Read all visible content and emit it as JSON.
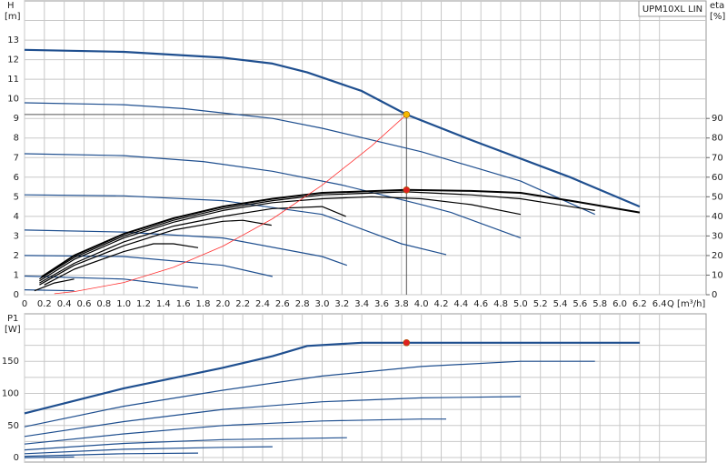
{
  "chart_data": [
    {
      "type": "line",
      "legend_label": "UPM10XL LIN",
      "ylabel": "H",
      "yunit": "[m]",
      "y2label": "eta",
      "y2unit": "[%]",
      "xlabel": "Q [m³/h]",
      "xlim": [
        0,
        6.87
      ],
      "ylim": [
        0,
        15
      ],
      "y2lim": [
        0,
        150
      ],
      "xticks": [
        0,
        0.2,
        0.4,
        0.6,
        0.8,
        {
          "value": 1,
          "label": "1.0"
        },
        1.2,
        1.4,
        1.6,
        1.8,
        {
          "value": 2,
          "label": "2.0"
        },
        2.2,
        2.4,
        2.6,
        2.8,
        {
          "value": 3,
          "label": "3.0"
        },
        3.2,
        3.4,
        3.6,
        3.8,
        {
          "value": 4,
          "label": "4.0"
        },
        4.2,
        4.4,
        4.6,
        4.8,
        {
          "value": 5,
          "label": "5.0"
        },
        5.2,
        5.4,
        5.6,
        5.8,
        {
          "value": 6,
          "label": "6.0"
        },
        6.2,
        6.4
      ],
      "yticks": [
        0,
        1,
        2,
        3,
        4,
        5,
        6,
        7,
        8,
        9,
        10,
        11,
        12,
        13
      ],
      "minor_yticks": [
        14
      ],
      "y2ticks": [
        0,
        10,
        20,
        30,
        40,
        50,
        60,
        70,
        80,
        90
      ],
      "grid": true,
      "series": [
        {
          "color": "#1f4f8f",
          "width": 2.2,
          "x": [
            0,
            1,
            2,
            2.5,
            2.85,
            3.4,
            3.85,
            4.5,
            5.5,
            6.2
          ],
          "values": [
            12.5,
            12.4,
            12.1,
            11.8,
            11.35,
            10.4,
            9.2,
            7.9,
            6.0,
            4.5
          ]
        },
        {
          "color": "#1f4f8f",
          "width": 1.2,
          "x": [
            0,
            1,
            1.6,
            2.5,
            3,
            4,
            5,
            5.75
          ],
          "values": [
            9.8,
            9.7,
            9.5,
            9.0,
            8.5,
            7.3,
            5.8,
            4.1
          ]
        },
        {
          "color": "#1f4f8f",
          "width": 1.2,
          "x": [
            0,
            1,
            1.8,
            2.5,
            3.2,
            4,
            4.3,
            5
          ],
          "values": [
            7.2,
            7.1,
            6.8,
            6.3,
            5.6,
            4.6,
            4.2,
            2.9
          ]
        },
        {
          "color": "#1f4f8f",
          "width": 1.2,
          "x": [
            0,
            1,
            2,
            3,
            3.8,
            4.25
          ],
          "values": [
            5.1,
            5.05,
            4.8,
            4.1,
            2.6,
            2.05
          ]
        },
        {
          "color": "#1f4f8f",
          "width": 1.2,
          "x": [
            0,
            1,
            2,
            3,
            3.25
          ],
          "values": [
            3.3,
            3.2,
            2.9,
            1.95,
            1.5
          ]
        },
        {
          "color": "#1f4f8f",
          "width": 1.2,
          "x": [
            0,
            1,
            2,
            2.5
          ],
          "values": [
            2.0,
            1.95,
            1.5,
            0.93
          ]
        },
        {
          "color": "#1f4f8f",
          "width": 1.2,
          "x": [
            0,
            1,
            1.75
          ],
          "values": [
            0.95,
            0.8,
            0.35
          ]
        },
        {
          "color": "#1f4f8f",
          "width": 1.2,
          "x": [
            0,
            0.5
          ],
          "values": [
            0.25,
            0.2
          ]
        },
        {
          "color": "#000000",
          "width": 2,
          "axis": "y2",
          "x": [
            0.17,
            0.5,
            1,
            1.5,
            2,
            2.5,
            3,
            3.85,
            4.5,
            5,
            5.5,
            6.2
          ],
          "values": [
            9,
            20,
            31,
            39,
            45,
            49,
            52,
            53.5,
            53,
            52,
            48,
            42
          ]
        },
        {
          "color": "#000000",
          "width": 1.2,
          "axis": "y2",
          "x": [
            0.15,
            0.5,
            1,
            1.5,
            2,
            2.5,
            3,
            3.85,
            4.5,
            5,
            5.75
          ],
          "values": [
            8,
            19,
            30,
            38,
            44,
            48,
            51,
            52.5,
            51,
            49,
            43
          ]
        },
        {
          "color": "#000000",
          "width": 1.2,
          "axis": "y2",
          "x": [
            0.15,
            0.5,
            1,
            1.5,
            2,
            2.5,
            3,
            3.5,
            4,
            4.5,
            5
          ],
          "values": [
            7,
            18,
            29,
            37,
            43,
            47,
            49,
            50,
            49,
            46,
            41
          ]
        },
        {
          "color": "#000000",
          "width": 1.2,
          "axis": "y2",
          "x": [
            0.15,
            0.5,
            1,
            1.5,
            2,
            2.5,
            3,
            3.24
          ],
          "values": [
            6,
            16,
            27,
            35,
            40,
            44,
            45,
            40
          ]
        },
        {
          "color": "#000000",
          "width": 1.2,
          "axis": "y2",
          "x": [
            0.15,
            0.5,
            1,
            1.5,
            2,
            2.2,
            2.49
          ],
          "values": [
            5,
            15,
            25,
            33,
            37.5,
            38,
            35.5
          ]
        },
        {
          "color": "#000000",
          "width": 1.2,
          "axis": "y2",
          "x": [
            0.2,
            0.5,
            1,
            1.3,
            1.5,
            1.75
          ],
          "values": [
            5,
            13,
            22,
            26,
            26,
            24
          ]
        },
        {
          "color": "#000000",
          "width": 1.2,
          "axis": "y2",
          "x": [
            0.1,
            0.3,
            0.5
          ],
          "values": [
            2,
            6,
            8
          ]
        },
        {
          "color": "#ff3030",
          "width": 0.8,
          "x": [
            0.3,
            0.5,
            1,
            1.5,
            2,
            2.5,
            3,
            3.5,
            3.85
          ],
          "values": [
            0.05,
            0.16,
            0.62,
            1.4,
            2.48,
            3.88,
            5.59,
            7.6,
            9.2
          ]
        }
      ],
      "points": [
        {
          "x": 3.85,
          "y": 9.2,
          "color": "#f5b800",
          "guide": true
        },
        {
          "x": 3.85,
          "y": 53.5,
          "color": "#e02020",
          "axis": "y2"
        }
      ]
    },
    {
      "type": "line",
      "ylabel": "P1",
      "yunit": "[W]",
      "xlim": [
        0,
        6.87
      ],
      "ylim": [
        -7,
        224
      ],
      "yticks": [
        0,
        50,
        100,
        150
      ],
      "minor_yticks": [
        25,
        75,
        125,
        175,
        200
      ],
      "grid": true,
      "series": [
        {
          "color": "#1f4f8f",
          "width": 2.2,
          "x": [
            0,
            1,
            2,
            2.5,
            2.85,
            3.4,
            3.85,
            6.2
          ],
          "values": [
            69,
            108,
            140,
            158,
            174,
            179,
            179,
            179
          ]
        },
        {
          "color": "#1f4f8f",
          "width": 1.2,
          "x": [
            0,
            1,
            2,
            3,
            4,
            5,
            5.75
          ],
          "values": [
            48,
            80,
            105,
            127,
            142,
            150,
            150
          ]
        },
        {
          "color": "#1f4f8f",
          "width": 1.2,
          "x": [
            0,
            1,
            2,
            3,
            4,
            5
          ],
          "values": [
            33,
            56,
            75,
            87,
            93,
            95
          ]
        },
        {
          "color": "#1f4f8f",
          "width": 1.2,
          "x": [
            0,
            1,
            2,
            3,
            4,
            4.25
          ],
          "values": [
            21,
            37,
            50,
            57,
            60,
            60
          ]
        },
        {
          "color": "#1f4f8f",
          "width": 1.2,
          "x": [
            0,
            1,
            2,
            3.25
          ],
          "values": [
            12,
            22,
            28,
            31
          ]
        },
        {
          "color": "#1f4f8f",
          "width": 1.2,
          "x": [
            0,
            1,
            2,
            2.5
          ],
          "values": [
            6,
            13,
            16,
            17
          ]
        },
        {
          "color": "#1f4f8f",
          "width": 1.2,
          "x": [
            0,
            1,
            1.75
          ],
          "values": [
            2,
            6,
            7
          ]
        },
        {
          "color": "#1f4f8f",
          "width": 1.2,
          "x": [
            0,
            0.5
          ],
          "values": [
            0,
            1
          ]
        }
      ],
      "points": [
        {
          "x": 3.85,
          "y": 179,
          "color": "#e02020"
        }
      ]
    }
  ]
}
